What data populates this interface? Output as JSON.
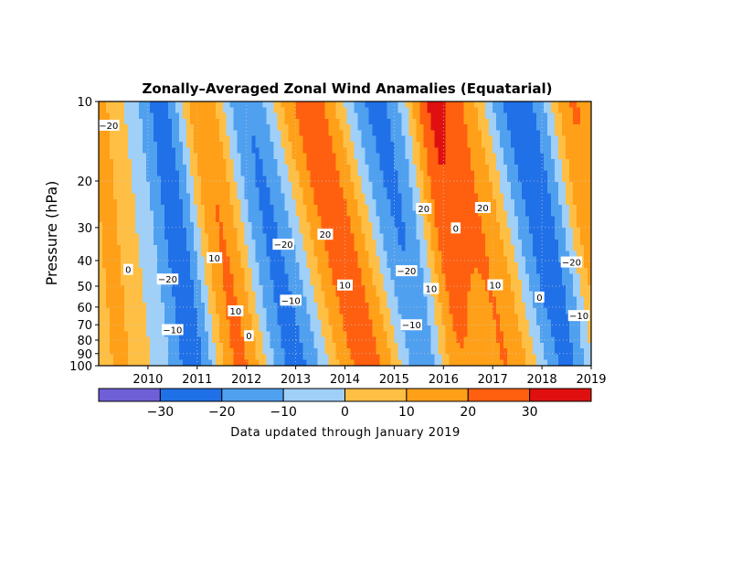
{
  "chart_data": {
    "type": "heatmap",
    "title": "Zonally–Averaged Zonal Wind Anamalies (Equatarial)",
    "xlabel": "",
    "ylabel": "Pressure (hPa)",
    "x_range": [
      2009.0,
      2019.0
    ],
    "x_ticks": [
      {
        "value": 2010,
        "label": "2010"
      },
      {
        "value": 2011,
        "label": "2011"
      },
      {
        "value": 2012,
        "label": "2012"
      },
      {
        "value": 2013,
        "label": "2013"
      },
      {
        "value": 2014,
        "label": "2014"
      },
      {
        "value": 2015,
        "label": "2015"
      },
      {
        "value": 2016,
        "label": "2016"
      },
      {
        "value": 2017,
        "label": "2017"
      },
      {
        "value": 2018,
        "label": "2018"
      },
      {
        "value": 2019,
        "label": "2019"
      }
    ],
    "y_scale": "log",
    "y_range": [
      100,
      10
    ],
    "y_ticks": [
      {
        "value": 10,
        "label": "10"
      },
      {
        "value": 20,
        "label": "20"
      },
      {
        "value": 30,
        "label": "30"
      },
      {
        "value": 40,
        "label": "40"
      },
      {
        "value": 50,
        "label": "50"
      },
      {
        "value": 60,
        "label": "60"
      },
      {
        "value": 70,
        "label": "70"
      },
      {
        "value": 80,
        "label": "80"
      },
      {
        "value": 90,
        "label": "90"
      },
      {
        "value": 100,
        "label": "100"
      }
    ],
    "grid": true,
    "colorbar": {
      "levels": [
        -40,
        -30,
        -20,
        -10,
        0,
        10,
        20,
        30,
        40
      ],
      "colors": [
        "#7060d8",
        "#2070e8",
        "#50a0f0",
        "#a0d0f8",
        "#ffbf44",
        "#ffa018",
        "#ff6010",
        "#e01010"
      ],
      "tick_labels": [
        {
          "value": -30,
          "label": "−30"
        },
        {
          "value": -20,
          "label": "−20"
        },
        {
          "value": -10,
          "label": "−10"
        },
        {
          "value": 0,
          "label": "0"
        },
        {
          "value": 10,
          "label": "10"
        },
        {
          "value": 20,
          "label": "20"
        },
        {
          "value": 30,
          "label": "30"
        }
      ]
    },
    "regimes": [
      {
        "t_top": 2009.0,
        "t_bot": 2009.45,
        "max": 12,
        "sign": 1
      },
      {
        "t_top": 2010.3,
        "t_bot": 2010.95,
        "max": 27,
        "sign": -1
      },
      {
        "t_top": 2011.1,
        "t_bot": 2011.9,
        "max": 25,
        "sign": 1
      },
      {
        "t_top": 2012.0,
        "t_bot": 2013.0,
        "max": 25,
        "sign": -1
      },
      {
        "t_top": 2013.25,
        "t_bot": 2014.55,
        "max": 27,
        "sign": 1
      },
      {
        "t_top": 2014.55,
        "t_bot": 2015.6,
        "max": 25,
        "sign": -1
      },
      {
        "t_top": 2015.7,
        "t_bot": 2016.25,
        "max": 26,
        "sign": 1
      },
      {
        "t_top": 2016.4,
        "t_bot": 2017.35,
        "max": 22,
        "sign": 1
      },
      {
        "t_top": 2017.45,
        "t_bot": 2018.65,
        "max": 27,
        "sign": -1
      },
      {
        "t_top": 2018.6,
        "t_bot": 2019.2,
        "max": 24,
        "sign": 1
      }
    ],
    "contour_labels": [
      {
        "x": 2009.2,
        "p": 12.3,
        "label": "−20"
      },
      {
        "x": 2009.6,
        "p": 43.2,
        "label": "0"
      },
      {
        "x": 2010.4,
        "p": 47.0,
        "label": "−20"
      },
      {
        "x": 2010.5,
        "p": 73.0,
        "label": "−10"
      },
      {
        "x": 2011.35,
        "p": 39.0,
        "label": "10"
      },
      {
        "x": 2011.78,
        "p": 62.0,
        "label": "10"
      },
      {
        "x": 2012.05,
        "p": 77.0,
        "label": "0"
      },
      {
        "x": 2012.75,
        "p": 34.7,
        "label": "−20"
      },
      {
        "x": 2012.9,
        "p": 56.5,
        "label": "−10"
      },
      {
        "x": 2013.6,
        "p": 31.8,
        "label": "20"
      },
      {
        "x": 2014.0,
        "p": 49.5,
        "label": "10"
      },
      {
        "x": 2015.25,
        "p": 43.7,
        "label": "−20"
      },
      {
        "x": 2015.35,
        "p": 70.0,
        "label": "−10"
      },
      {
        "x": 2015.6,
        "p": 25.4,
        "label": "20"
      },
      {
        "x": 2015.75,
        "p": 51.0,
        "label": "10"
      },
      {
        "x": 2016.25,
        "p": 30.1,
        "label": "0"
      },
      {
        "x": 2016.8,
        "p": 25.2,
        "label": "20"
      },
      {
        "x": 2017.05,
        "p": 49.4,
        "label": "10"
      },
      {
        "x": 2017.95,
        "p": 55.0,
        "label": "0"
      },
      {
        "x": 2018.6,
        "p": 40.5,
        "label": "−20"
      },
      {
        "x": 2018.75,
        "p": 64.6,
        "label": "−10"
      }
    ]
  },
  "footer_note": "Data updated through January 2019"
}
